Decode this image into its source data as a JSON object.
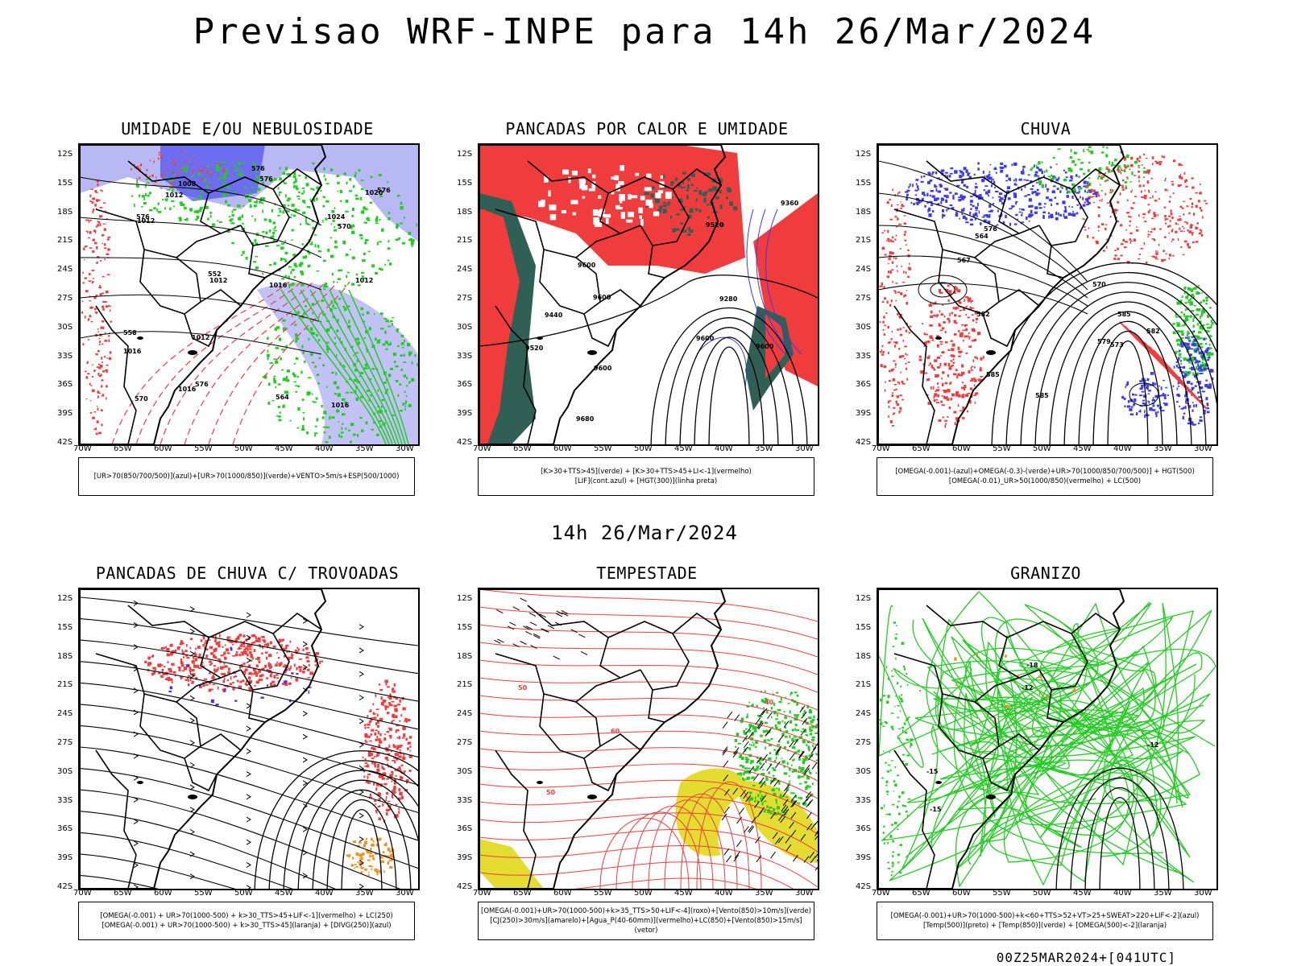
{
  "title": "Previsao WRF-INPE  para 14h 26/Mar/2024",
  "mid_title": "14h 26/Mar/2024",
  "footer": "00Z25MAR2024+[041UTC]",
  "lat_labels": [
    "12S",
    "15S",
    "18S",
    "21S",
    "24S",
    "27S",
    "30S",
    "33S",
    "36S",
    "39S",
    "42S"
  ],
  "lon_labels": [
    "70W",
    "65W",
    "60W",
    "55W",
    "50W",
    "45W",
    "40W",
    "35W",
    "30W"
  ],
  "panels": [
    {
      "id": "umidade",
      "title": "UMIDADE E/OU NEBULOSIDADE",
      "legend": [
        "[UR>70(850/700/500)](azul)+[UR>70(1000/850)](verde)+VENTO>5m/s+ESP(500/1000)"
      ],
      "contour_labels": [
        "1012",
        "1012",
        "1012",
        "1016",
        "1016",
        "1012",
        "1016",
        "1016",
        "1012",
        "1020",
        "1024",
        "1008",
        "576",
        "576",
        "576",
        "576",
        "570",
        "570",
        "576",
        "564",
        "558",
        "552"
      ]
    },
    {
      "id": "pancadas-calor",
      "title": "PANCADAS POR CALOR E UMIDADE",
      "legend": [
        "[K>30+TTS>45](verde) + [K>30+TTS>45+LI<-1](vermelho)",
        "[LIF](cont.azul) + [HGT(300)](linha preta)"
      ],
      "contour_labels": [
        "9680",
        "9600",
        "9600",
        "9600",
        "9600",
        "9520",
        "9440",
        "9360",
        "9280",
        "9520",
        "9600"
      ]
    },
    {
      "id": "chuva",
      "title": "CHUVA",
      "legend": [
        "[OMEGA(-0.001)-(azul)+OMEGA(-0.3)-(verde)+UR>70(1000/850/700/500)] + HGT(500)",
        "[OMEGA(-0.01)_UR>50(1000/850)(vermelho) + LC(500)"
      ],
      "contour_labels": [
        "585",
        "585",
        "582",
        "582",
        "579",
        "576",
        "573",
        "570",
        "567",
        "564",
        "585"
      ]
    },
    {
      "id": "pancadas-trovoadas",
      "title": "PANCADAS DE CHUVA C/ TROVOADAS",
      "legend": [
        "[OMEGA(-0.001) + UR>70(1000-500) + k>30_TTS>45+LIF<-1](vermelho) + LC(250)",
        "[OMEGA(-0.001) + UR>70(1000-500) + k>30_TTS>45](laranja) + [DIVG(250)](azul)"
      ],
      "contour_labels": []
    },
    {
      "id": "tempestade",
      "title": "TEMPESTADE",
      "legend": [
        "[OMEGA(-0.001)+UR>70(1000-500)+k>35_TTS>50+LIF<-4](roxo)+[Vento(850)>10m/s](verde)",
        "[CJ(250)>30m/s](amarelo)+[Agua_P(40-60mm)](vermelho)+LC(850)+[Vento(850)>15m/s](vetor)"
      ],
      "contour_labels": [
        "60",
        "50",
        "50",
        "40"
      ]
    },
    {
      "id": "granizo",
      "title": "GRANIZO",
      "legend": [
        "[OMEGA(-0.001)+UR>70(1000-500)+k<60+TTS>52+VT>25+SWEAT>220+LIF<-2](azul)",
        "[Temp(500)](preto) + [Temp(850)](verde) + [OMEGA(500)<-2](laranja)"
      ],
      "contour_labels": [
        "-12",
        "-12",
        "-15",
        "-18",
        "-15"
      ]
    }
  ],
  "colors": {
    "red": "#f03c3c",
    "green": "#22cc22",
    "blue": "#3a3af0",
    "lavender": "#9a9af0",
    "darkteal": "#2f5f55",
    "yellow": "#e4dc30",
    "orange": "#f09020"
  }
}
